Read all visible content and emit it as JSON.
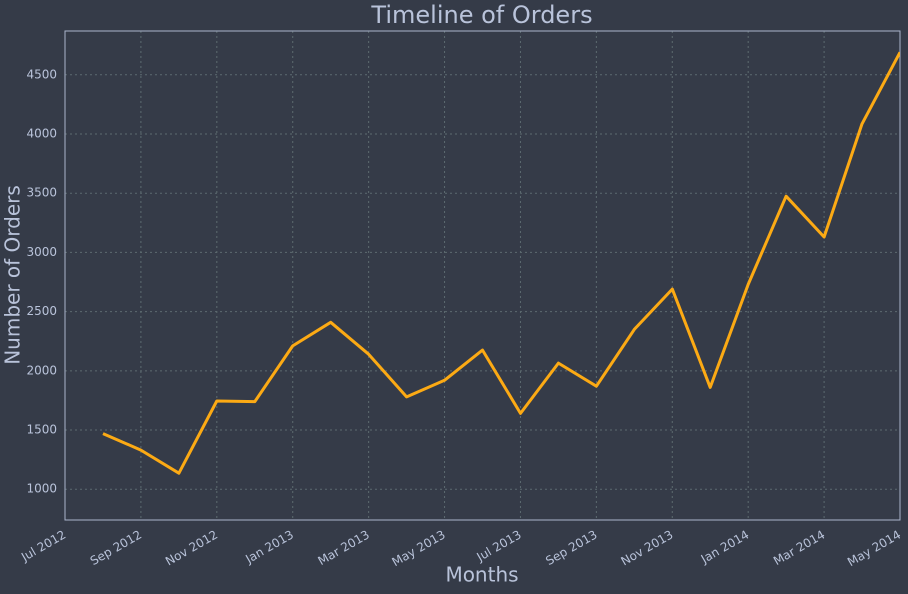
{
  "chart_data": {
    "type": "line",
    "title": "Timeline of Orders",
    "xlabel": "Months",
    "ylabel": "Number of Orders",
    "x": [
      "2012-08",
      "2012-09",
      "2012-10",
      "2012-11",
      "2012-12",
      "2013-01",
      "2013-02",
      "2013-03",
      "2013-04",
      "2013-05",
      "2013-06",
      "2013-07",
      "2013-08",
      "2013-09",
      "2013-10",
      "2013-11",
      "2013-12",
      "2014-01",
      "2014-02",
      "2014-03",
      "2014-04",
      "2014-05"
    ],
    "values": [
      1470,
      1330,
      1135,
      1745,
      1740,
      2210,
      2410,
      2140,
      1780,
      1920,
      2175,
      1640,
      2065,
      1870,
      2350,
      2690,
      1860,
      2730,
      3475,
      3130,
      4085,
      4690
    ],
    "color": "#fcaa14",
    "xlim": [
      "2012-07",
      "2014-05"
    ],
    "xticks": [
      {
        "value": "2012-07",
        "label": "Jul 2012"
      },
      {
        "value": "2012-09",
        "label": "Sep 2012"
      },
      {
        "value": "2012-11",
        "label": "Nov 2012"
      },
      {
        "value": "2013-01",
        "label": "Jan 2013"
      },
      {
        "value": "2013-03",
        "label": "Mar 2013"
      },
      {
        "value": "2013-05",
        "label": "May 2013"
      },
      {
        "value": "2013-07",
        "label": "Jul 2013"
      },
      {
        "value": "2013-09",
        "label": "Sep 2013"
      },
      {
        "value": "2013-11",
        "label": "Nov 2013"
      },
      {
        "value": "2014-01",
        "label": "Jan 2014"
      },
      {
        "value": "2014-03",
        "label": "Mar 2014"
      },
      {
        "value": "2014-05",
        "label": "May 2014"
      }
    ],
    "ylim": [
      740,
      4870
    ],
    "yticks": [
      1000,
      1500,
      2000,
      2500,
      3000,
      3500,
      4000,
      4500
    ],
    "grid": true
  }
}
